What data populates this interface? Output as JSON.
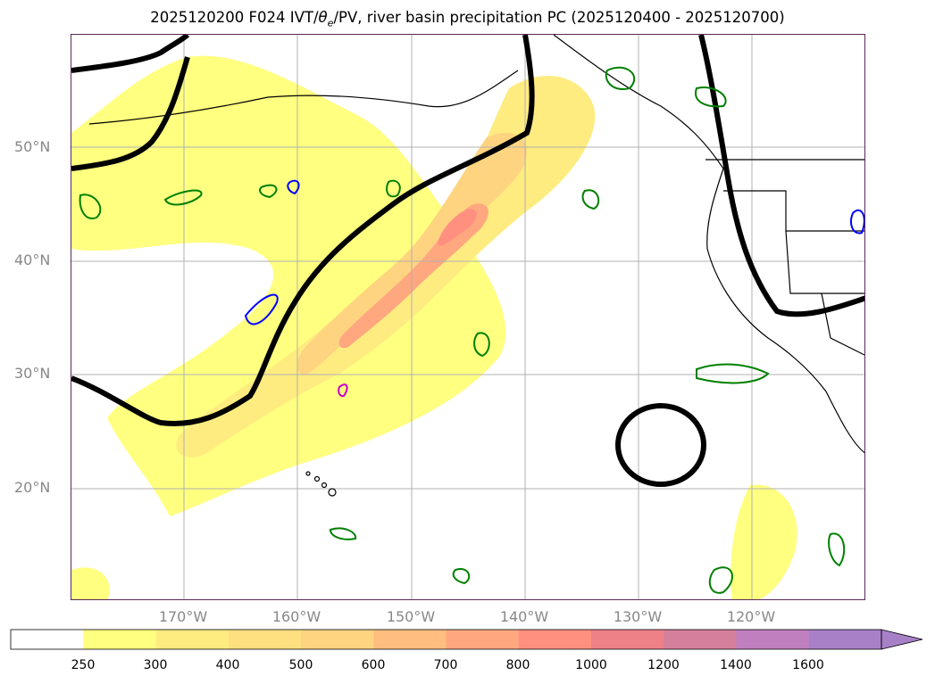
{
  "title": {
    "prefix": "2025120200 F024 IVT/",
    "theta": "θ",
    "theta_sub": "e",
    "suffix": "/PV, river basin precipitation PC (2025120400 - 2025120700)"
  },
  "map": {
    "lat_labels": [
      "50°N",
      "40°N",
      "30°N",
      "20°N"
    ],
    "lon_labels": [
      "170°W",
      "160°W",
      "150°W",
      "140°W",
      "130°W",
      "120°W"
    ],
    "colors": {
      "ocean": "#ffffff",
      "coast": "#000000",
      "gridline": "#b0b0b0",
      "theta_contour": "#000000",
      "pv_contour_green": "#008000",
      "pv_contour_blue": "#0000ff",
      "pv_contour_magenta": "#cc00cc"
    }
  },
  "colorbar": {
    "ticks": [
      "250",
      "300",
      "400",
      "500",
      "600",
      "700",
      "800",
      "1000",
      "1200",
      "1400",
      "1600"
    ],
    "colors": [
      "#ffffff",
      "#ffff80",
      "#ffec80",
      "#ffe080",
      "#ffd480",
      "#ffbe80",
      "#ffa880",
      "#ff9080",
      "#ee8088",
      "#d4809c",
      "#c080c0",
      "#a880c8"
    ]
  }
}
